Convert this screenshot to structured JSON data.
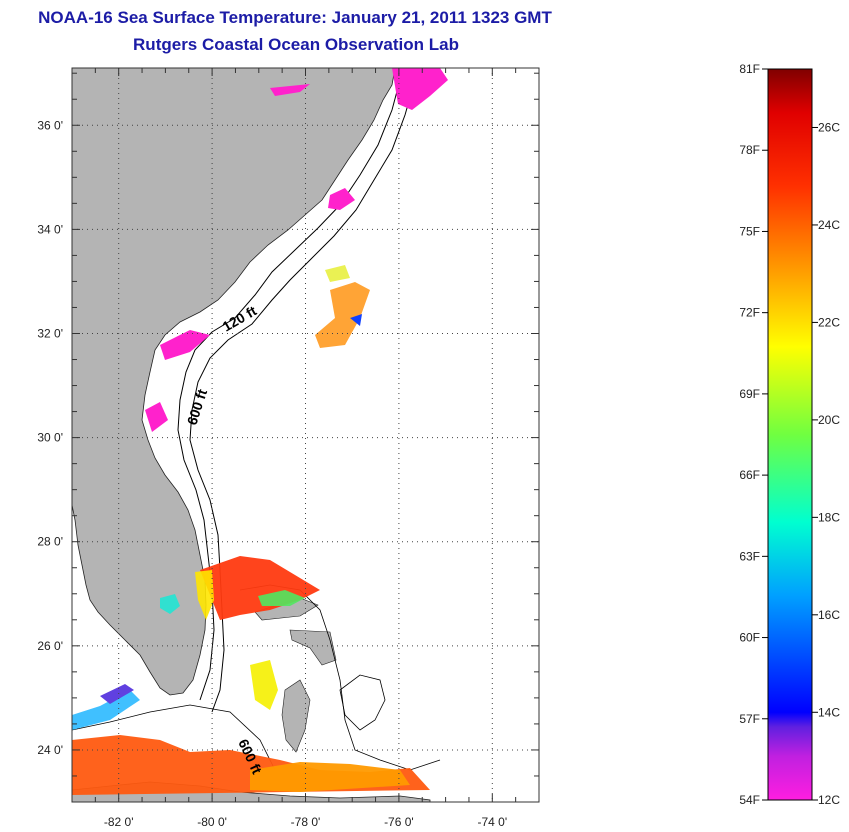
{
  "map": {
    "title": "NOAA-16 Sea Surface Temperature:  January 21, 2011 1323 GMT",
    "subtitle": "Rutgers Coastal Ocean Observation Lab",
    "lat_labels": [
      "36 0'",
      "34 0'",
      "32 0'",
      "30 0'",
      "28 0'",
      "26 0'",
      "24 0'"
    ],
    "lat_values": [
      36,
      34,
      32,
      30,
      28,
      26,
      24
    ],
    "lon_labels": [
      "-82 0'",
      "-80 0'",
      "-78 0'",
      "-76 0'",
      "-74 0'"
    ],
    "lon_values": [
      -82,
      -80,
      -78,
      -76,
      -74
    ],
    "lat_range": [
      23,
      37.1
    ],
    "lon_range": [
      -83,
      -73
    ],
    "contour_labels": [
      "120 ft",
      "600 ft",
      "600 ft"
    ],
    "land_color": "#b4b4b4"
  },
  "colorbar": {
    "fahrenheit_labels": [
      "81F",
      "78F",
      "75F",
      "72F",
      "69F",
      "66F",
      "63F",
      "60F",
      "57F",
      "54F"
    ],
    "celsius_labels": [
      "26C",
      "24C",
      "22C",
      "20C",
      "18C",
      "16C",
      "14C",
      "12C"
    ],
    "range_f": [
      54,
      81
    ],
    "range_c": [
      12.2,
      27.2
    ]
  }
}
